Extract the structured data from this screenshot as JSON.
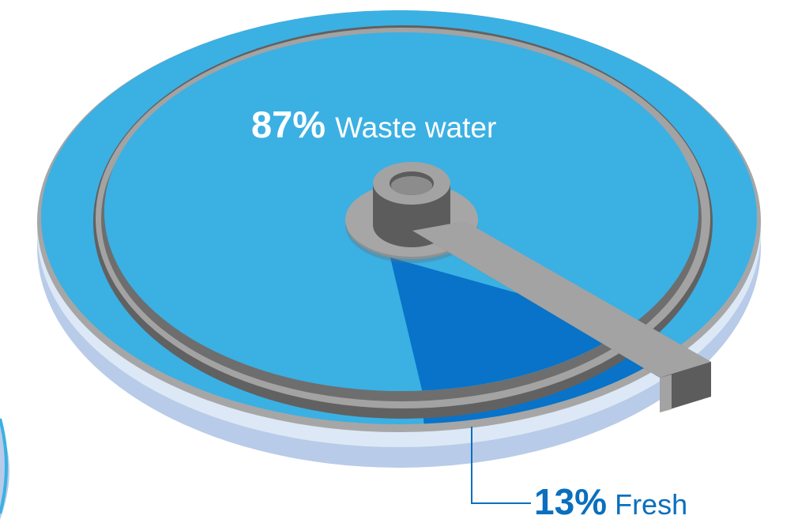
{
  "colors": {
    "waste": "#3bb0e3",
    "fresh": "#0873c8",
    "rim_shadow": "#b8cbe8",
    "rim_gray": "#a6a6a6",
    "inner_ring": "#616161",
    "lever_top": "#a3a3a3",
    "lever_side": "#5c5c5c",
    "leader": "#0a6fbe"
  },
  "chart_data": {
    "type": "pie",
    "title": "",
    "slices": [
      {
        "label": "Waste water",
        "percent_label": "87%",
        "value": 87
      },
      {
        "label": "Fresh",
        "percent_label": "13%",
        "value": 13
      }
    ]
  }
}
